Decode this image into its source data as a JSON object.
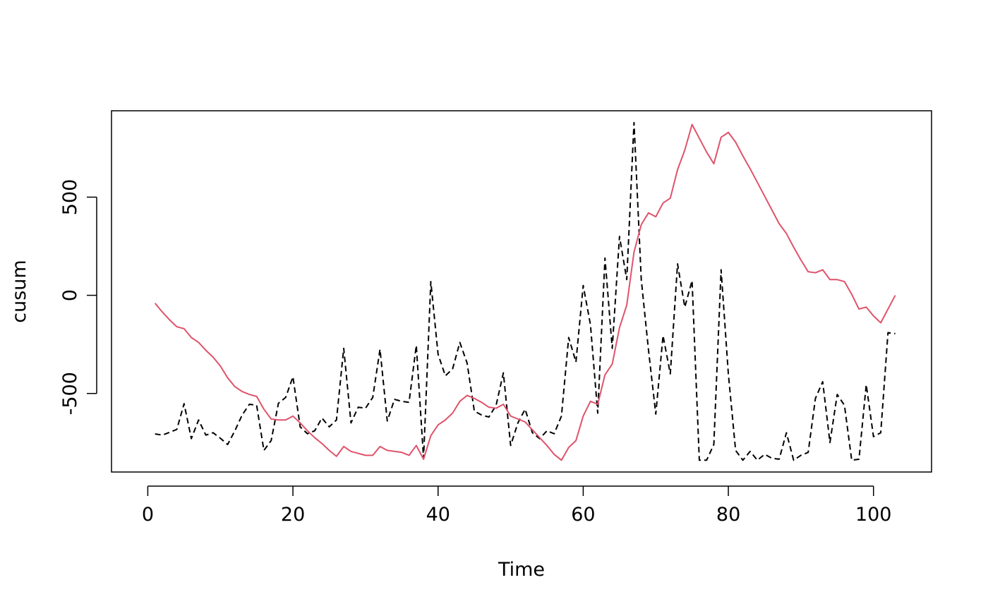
{
  "chart_data": {
    "type": "line",
    "title": "",
    "xlabel": "Time",
    "ylabel": "cusum",
    "xlim": [
      -5,
      108
    ],
    "ylim": [
      -900,
      940
    ],
    "x_ticks": [
      0,
      20,
      40,
      60,
      80,
      100
    ],
    "x_tick_labels": [
      "0",
      "20",
      "40",
      "60",
      "80",
      "100"
    ],
    "y_ticks": [
      -500,
      0,
      500
    ],
    "y_tick_labels": [
      "-500",
      "0",
      "500"
    ],
    "grid": false,
    "legend": "none",
    "x": [
      1,
      2,
      3,
      4,
      5,
      6,
      7,
      8,
      9,
      10,
      11,
      12,
      13,
      14,
      15,
      16,
      17,
      18,
      19,
      20,
      21,
      22,
      23,
      24,
      25,
      26,
      27,
      28,
      29,
      30,
      31,
      32,
      33,
      34,
      35,
      36,
      37,
      38,
      39,
      40,
      41,
      42,
      43,
      44,
      45,
      46,
      47,
      48,
      49,
      50,
      51,
      52,
      53,
      54,
      55,
      56,
      57,
      58,
      59,
      60,
      61,
      62,
      63,
      64,
      65,
      66,
      67,
      68,
      69,
      70,
      71,
      72,
      73,
      74,
      75,
      76,
      77,
      78,
      79,
      80,
      81,
      82,
      83,
      84,
      85,
      86,
      87,
      88,
      89,
      90,
      91,
      92,
      93,
      94,
      95,
      96,
      97,
      98,
      99,
      100,
      101,
      102,
      103
    ],
    "series": [
      {
        "color": "#000000",
        "dash": "dashed",
        "values": [
          -706,
          -712,
          -698,
          -683,
          -552,
          -730,
          -635,
          -712,
          -700,
          -728,
          -760,
          -690,
          -610,
          -555,
          -560,
          -790,
          -740,
          -550,
          -520,
          -415,
          -670,
          -705,
          -690,
          -625,
          -670,
          -635,
          -270,
          -650,
          -570,
          -575,
          -520,
          -275,
          -640,
          -530,
          -540,
          -545,
          -255,
          -830,
          70,
          -300,
          -410,
          -375,
          -240,
          -345,
          -590,
          -610,
          -620,
          -560,
          -395,
          -765,
          -650,
          -580,
          -700,
          -730,
          -690,
          -705,
          -615,
          -215,
          -340,
          50,
          -150,
          -600,
          190,
          -270,
          300,
          80,
          880,
          80,
          -280,
          -605,
          -205,
          -400,
          160,
          -60,
          75,
          -840,
          -840,
          -760,
          130,
          -400,
          -790,
          -840,
          -795,
          -840,
          -810,
          -830,
          -835,
          -700,
          -840,
          -815,
          -800,
          -525,
          -440,
          -750,
          -505,
          -560,
          -840,
          -835,
          -455,
          -720,
          -700,
          -190,
          -195
        ]
      },
      {
        "color": "#df536b",
        "dash": "solid",
        "values": [
          -40,
          -85,
          -125,
          -160,
          -170,
          -215,
          -240,
          -280,
          -315,
          -360,
          -420,
          -465,
          -490,
          -505,
          -515,
          -580,
          -630,
          -635,
          -635,
          -615,
          -650,
          -690,
          -725,
          -755,
          -790,
          -820,
          -770,
          -795,
          -805,
          -815,
          -815,
          -770,
          -790,
          -795,
          -800,
          -815,
          -765,
          -835,
          -715,
          -660,
          -635,
          -600,
          -540,
          -510,
          -525,
          -545,
          -570,
          -575,
          -555,
          -615,
          -630,
          -645,
          -685,
          -725,
          -765,
          -810,
          -840,
          -775,
          -740,
          -615,
          -540,
          -555,
          -405,
          -350,
          -165,
          -50,
          220,
          360,
          420,
          400,
          470,
          495,
          640,
          740,
          870,
          800,
          730,
          670,
          805,
          830,
          780,
          710,
          645,
          575,
          505,
          435,
          365,
          315,
          245,
          180,
          120,
          115,
          130,
          80,
          80,
          70,
          5,
          -70,
          -60,
          -105,
          -140,
          -70,
          0
        ]
      }
    ]
  }
}
